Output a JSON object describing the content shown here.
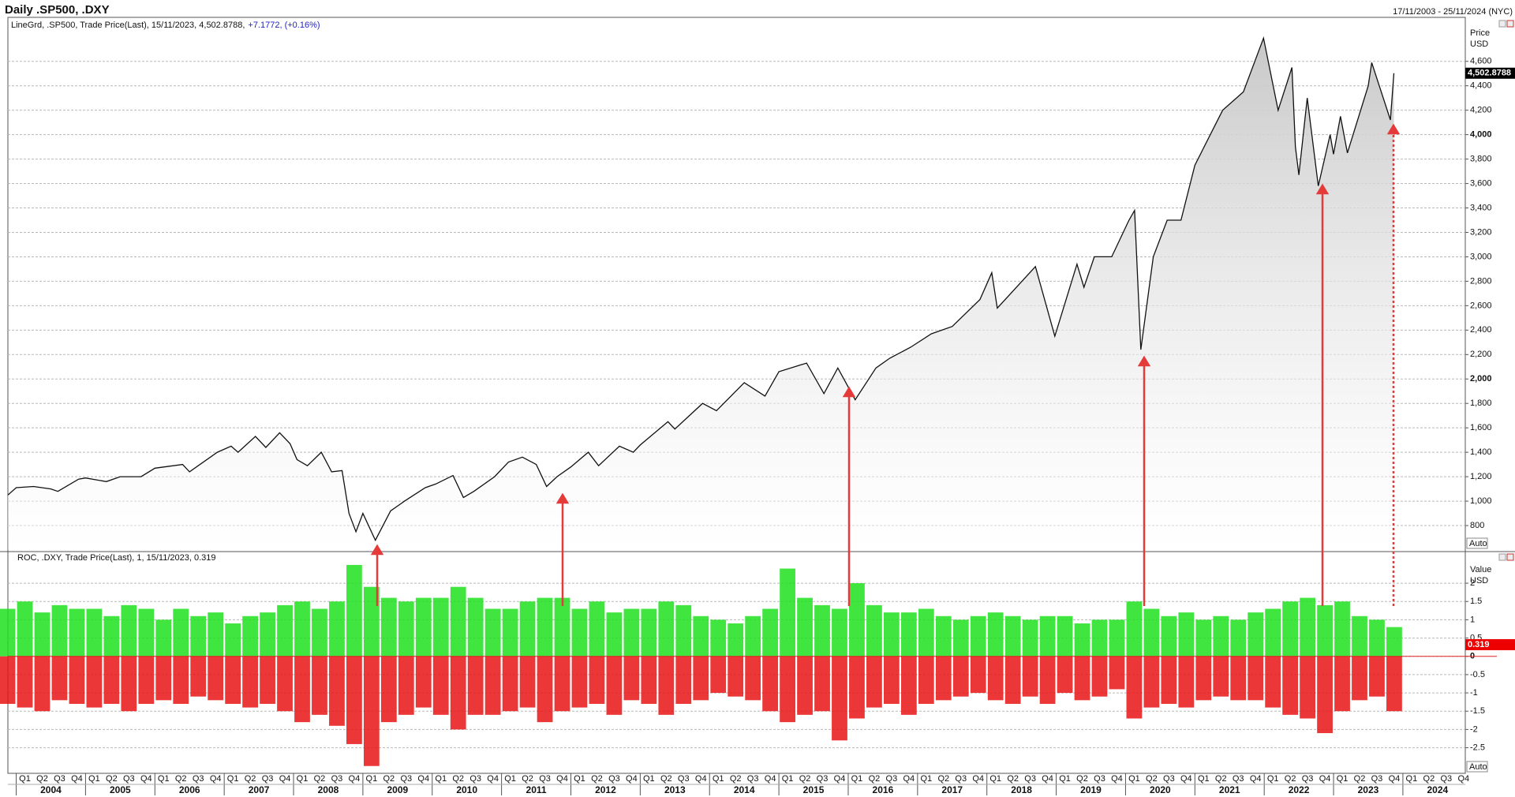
{
  "header": {
    "title": "Daily .SP500, .DXY",
    "date_range": "17/11/2003 - 25/11/2024 (NYC)"
  },
  "chart_data": [
    {
      "type": "line",
      "caption": "LineGrd, .SP500, Trade Price(Last), 15/11/2023, 4,502.8788,",
      "caption_change": "+7.1772, (+0.16%)",
      "y_unit": [
        "Price",
        "USD"
      ],
      "scale_mode": "Auto",
      "color": "#111111",
      "last": {
        "value": 4502.8788,
        "label": "4,502.8788"
      },
      "xlim": [
        2003.88,
        2024.9
      ],
      "ylim": [
        600,
        4960
      ],
      "yticks": [
        800,
        {
          "value": 1000,
          "label": "1,000"
        },
        {
          "value": 1200,
          "label": "1,200"
        },
        {
          "value": 1400,
          "label": "1,400"
        },
        {
          "value": 1600,
          "label": "1,600"
        },
        {
          "value": 1800,
          "label": "1,800"
        },
        {
          "value": 2000,
          "label": "2,000"
        },
        {
          "value": 2200,
          "label": "2,200"
        },
        {
          "value": 2400,
          "label": "2,400"
        },
        {
          "value": 2600,
          "label": "2,600"
        },
        {
          "value": 2800,
          "label": "2,800"
        },
        {
          "value": 3000,
          "label": "3,000"
        },
        {
          "value": 3200,
          "label": "3,200"
        },
        {
          "value": 3400,
          "label": "3,400"
        },
        {
          "value": 3600,
          "label": "3,600"
        },
        {
          "value": 3800,
          "label": "3,800"
        },
        {
          "value": 4000,
          "label": "4,000"
        },
        {
          "value": 4200,
          "label": "4,200"
        },
        {
          "value": 4400,
          "label": "4,400"
        },
        {
          "value": 4600,
          "label": "4,600"
        }
      ],
      "grid": true,
      "x": [
        2003.88,
        2004.0,
        2004.25,
        2004.5,
        2004.6,
        2004.9,
        2005.0,
        2005.3,
        2005.5,
        2005.8,
        2006.0,
        2006.4,
        2006.5,
        2006.9,
        2007.1,
        2007.2,
        2007.45,
        2007.6,
        2007.8,
        2007.95,
        2008.05,
        2008.2,
        2008.4,
        2008.55,
        2008.7,
        2008.8,
        2008.9,
        2009.0,
        2009.18,
        2009.4,
        2009.6,
        2009.9,
        2010.05,
        2010.3,
        2010.45,
        2010.6,
        2010.9,
        2011.1,
        2011.3,
        2011.5,
        2011.65,
        2011.8,
        2012.0,
        2012.25,
        2012.4,
        2012.7,
        2012.9,
        2013.0,
        2013.4,
        2013.5,
        2013.9,
        2014.1,
        2014.5,
        2014.8,
        2015.0,
        2015.4,
        2015.65,
        2015.85,
        2016.1,
        2016.4,
        2016.6,
        2016.9,
        2017.2,
        2017.5,
        2017.9,
        2018.07,
        2018.15,
        2018.7,
        2018.98,
        2019.3,
        2019.4,
        2019.55,
        2019.8,
        2020.05,
        2020.13,
        2020.22,
        2020.4,
        2020.6,
        2020.8,
        2021.0,
        2021.4,
        2021.7,
        2021.99,
        2022.2,
        2022.4,
        2022.45,
        2022.5,
        2022.62,
        2022.78,
        2022.95,
        2023.0,
        2023.1,
        2023.2,
        2023.5,
        2023.55,
        2023.82,
        2023.87
      ],
      "values": [
        1050,
        1110,
        1120,
        1100,
        1080,
        1180,
        1190,
        1160,
        1200,
        1200,
        1270,
        1300,
        1240,
        1400,
        1450,
        1400,
        1530,
        1440,
        1560,
        1470,
        1340,
        1290,
        1400,
        1240,
        1250,
        900,
        750,
        900,
        680,
        920,
        1000,
        1110,
        1140,
        1210,
        1030,
        1080,
        1200,
        1320,
        1360,
        1300,
        1120,
        1200,
        1280,
        1400,
        1290,
        1450,
        1400,
        1460,
        1650,
        1590,
        1800,
        1740,
        1970,
        1860,
        2060,
        2130,
        1880,
        2090,
        1830,
        2090,
        2170,
        2260,
        2370,
        2430,
        2650,
        2870,
        2580,
        2920,
        2350,
        2940,
        2750,
        3000,
        3000,
        3300,
        3380,
        2240,
        3000,
        3300,
        3300,
        3750,
        4200,
        4350,
        4790,
        4200,
        4550,
        3900,
        3670,
        4300,
        3580,
        4000,
        3840,
        4150,
        3850,
        4400,
        4590,
        4120,
        4502.8788
      ]
    },
    {
      "type": "bar",
      "caption": "ROC, .DXY, Trade Price(Last), 1, 15/11/2023, 0.319",
      "y_unit": [
        "Value",
        "USD"
      ],
      "scale_mode": "Auto",
      "last": {
        "value": 0.319,
        "label": "0.319"
      },
      "xlim": [
        2003.88,
        2024.9
      ],
      "ylim": [
        -3.2,
        2.8
      ],
      "yticks": [
        -2.5,
        -2,
        -1.5,
        -1,
        -0.5,
        0,
        0.5,
        1,
        1.5,
        2
      ],
      "grid": true,
      "xticks": [
        2004,
        2005,
        2006,
        2007,
        2008,
        2009,
        2010,
        2011,
        2012,
        2013,
        2014,
        2015,
        2016,
        2017,
        2018,
        2019,
        2020,
        2021,
        2022,
        2023,
        2024
      ],
      "quarters": [
        "Q1",
        "Q2",
        "Q3",
        "Q4"
      ],
      "x": [
        2003.875,
        2004.125,
        2004.375,
        2004.625,
        2004.875,
        2005.125,
        2005.375,
        2005.625,
        2005.875,
        2006.125,
        2006.375,
        2006.625,
        2006.875,
        2007.125,
        2007.375,
        2007.625,
        2007.875,
        2008.125,
        2008.375,
        2008.625,
        2008.875,
        2009.125,
        2009.375,
        2009.625,
        2009.875,
        2010.125,
        2010.375,
        2010.625,
        2010.875,
        2011.125,
        2011.375,
        2011.625,
        2011.875,
        2012.125,
        2012.375,
        2012.625,
        2012.875,
        2013.125,
        2013.375,
        2013.625,
        2013.875,
        2014.125,
        2014.375,
        2014.625,
        2014.875,
        2015.125,
        2015.375,
        2015.625,
        2015.875,
        2016.125,
        2016.375,
        2016.625,
        2016.875,
        2017.125,
        2017.375,
        2017.625,
        2017.875,
        2018.125,
        2018.375,
        2018.625,
        2018.875,
        2019.125,
        2019.375,
        2019.625,
        2019.875,
        2020.125,
        2020.375,
        2020.625,
        2020.875,
        2021.125,
        2021.375,
        2021.625,
        2021.875,
        2022.125,
        2022.375,
        2022.625,
        2022.875,
        2023.125,
        2023.375,
        2023.625,
        2023.875
      ],
      "series": [
        {
          "color": "#1fe01f",
          "values": [
            1.3,
            1.5,
            1.2,
            1.4,
            1.3,
            1.3,
            1.1,
            1.4,
            1.3,
            1.0,
            1.3,
            1.1,
            1.2,
            0.9,
            1.1,
            1.2,
            1.4,
            1.5,
            1.3,
            1.5,
            2.5,
            1.9,
            1.6,
            1.5,
            1.6,
            1.6,
            1.9,
            1.6,
            1.3,
            1.3,
            1.5,
            1.6,
            1.6,
            1.3,
            1.5,
            1.2,
            1.3,
            1.3,
            1.5,
            1.4,
            1.1,
            1.0,
            0.9,
            1.1,
            1.3,
            2.4,
            1.6,
            1.4,
            1.3,
            2.0,
            1.4,
            1.2,
            1.2,
            1.3,
            1.1,
            1.0,
            1.1,
            1.2,
            1.1,
            1.0,
            1.1,
            1.1,
            0.9,
            1.0,
            1.0,
            1.5,
            1.3,
            1.1,
            1.2,
            1.0,
            1.1,
            1.0,
            1.2,
            1.3,
            1.5,
            1.6,
            1.4,
            1.5,
            1.1,
            1.0,
            0.8
          ]
        },
        {
          "color": "#e81414",
          "values": [
            -1.3,
            -1.4,
            -1.5,
            -1.2,
            -1.3,
            -1.4,
            -1.3,
            -1.5,
            -1.3,
            -1.2,
            -1.3,
            -1.1,
            -1.2,
            -1.3,
            -1.4,
            -1.3,
            -1.5,
            -1.8,
            -1.6,
            -1.9,
            -2.4,
            -3.0,
            -1.8,
            -1.6,
            -1.4,
            -1.6,
            -2.0,
            -1.6,
            -1.6,
            -1.5,
            -1.4,
            -1.8,
            -1.5,
            -1.4,
            -1.3,
            -1.6,
            -1.2,
            -1.3,
            -1.6,
            -1.3,
            -1.2,
            -1.0,
            -1.1,
            -1.2,
            -1.5,
            -1.8,
            -1.6,
            -1.5,
            -2.3,
            -1.7,
            -1.4,
            -1.3,
            -1.6,
            -1.3,
            -1.2,
            -1.1,
            -1.0,
            -1.2,
            -1.3,
            -1.1,
            -1.3,
            -1.0,
            -1.2,
            -1.1,
            -0.9,
            -1.7,
            -1.4,
            -1.3,
            -1.4,
            -1.2,
            -1.1,
            -1.2,
            -1.2,
            -1.4,
            -1.6,
            -1.7,
            -2.1,
            -1.5,
            -1.2,
            -1.1,
            -1.5
          ]
        }
      ]
    }
  ]
}
